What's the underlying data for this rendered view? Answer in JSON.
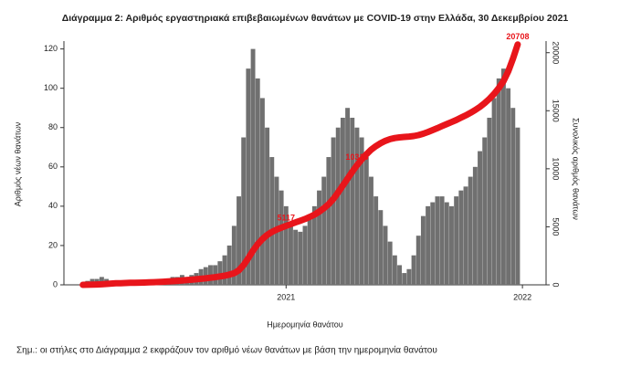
{
  "chart_data": {
    "type": "bar-line",
    "title": "Διάγραμμα 2: Αριθμός εργαστηριακά επιβεβαιωμένων θανάτων με COVID-19 στην Ελλάδα, 30 Δεκεμβρίου 2021",
    "x_label": "Ημερομηνία θανάτου",
    "y_label": "Αριθμός νέων θανάτων",
    "y2_label": "Συνολικός αριθμός θανάτων",
    "note": "Σημ.: οι στήλες στο Διάγραμμα 2 εκφράζουν τον αριθμό νέων θανάτων με βάση την ημερομηνία θανάτου",
    "xlim": [
      2020.06,
      2022.1
    ],
    "xticks": [
      2021,
      2022
    ],
    "ylim": [
      0,
      124
    ],
    "yticks": [
      0,
      20,
      40,
      60,
      80,
      100,
      120
    ],
    "y2lim": [
      0,
      21000
    ],
    "y2ticks": [
      0,
      5000,
      10000,
      15000,
      20000
    ],
    "x": [
      2020.14,
      2020.16,
      2020.18,
      2020.2,
      2020.22,
      2020.24,
      2020.26,
      2020.28,
      2020.3,
      2020.32,
      2020.34,
      2020.36,
      2020.38,
      2020.4,
      2020.42,
      2020.44,
      2020.46,
      2020.48,
      2020.5,
      2020.52,
      2020.54,
      2020.56,
      2020.58,
      2020.6,
      2020.62,
      2020.64,
      2020.66,
      2020.68,
      2020.7,
      2020.72,
      2020.74,
      2020.76,
      2020.78,
      2020.8,
      2020.82,
      2020.84,
      2020.86,
      2020.88,
      2020.9,
      2020.92,
      2020.94,
      2020.96,
      2020.98,
      2021.0,
      2021.02,
      2021.04,
      2021.06,
      2021.08,
      2021.1,
      2021.12,
      2021.14,
      2021.16,
      2021.18,
      2021.2,
      2021.22,
      2021.24,
      2021.26,
      2021.28,
      2021.3,
      2021.32,
      2021.34,
      2021.36,
      2021.38,
      2021.4,
      2021.42,
      2021.44,
      2021.46,
      2021.48,
      2021.5,
      2021.52,
      2021.54,
      2021.56,
      2021.58,
      2021.6,
      2021.62,
      2021.64,
      2021.66,
      2021.68,
      2021.7,
      2021.72,
      2021.74,
      2021.76,
      2021.78,
      2021.8,
      2021.82,
      2021.84,
      2021.86,
      2021.88,
      2021.9,
      2021.92,
      2021.94,
      2021.96,
      2021.98
    ],
    "series": [
      {
        "name": "Νέοι θάνατοι",
        "color": "#707070",
        "axis": "y",
        "values": [
          1,
          2,
          3,
          3,
          4,
          3,
          2,
          2,
          1,
          1,
          1,
          1,
          1,
          1,
          2,
          2,
          2,
          3,
          3,
          4,
          4,
          5,
          4,
          5,
          6,
          8,
          9,
          10,
          10,
          12,
          15,
          20,
          30,
          45,
          75,
          110,
          120,
          105,
          95,
          80,
          65,
          55,
          48,
          40,
          32,
          28,
          27,
          30,
          35,
          40,
          48,
          55,
          65,
          75,
          80,
          85,
          90,
          85,
          80,
          75,
          65,
          55,
          45,
          38,
          30,
          22,
          15,
          10,
          6,
          8,
          15,
          25,
          35,
          40,
          42,
          45,
          45,
          42,
          40,
          45,
          48,
          50,
          55,
          60,
          68,
          75,
          85,
          95,
          105,
          110,
          100,
          90,
          80
        ]
      },
      {
        "name": "Συνολικοί θάνατοι",
        "color": "#e8151b",
        "axis": "y2",
        "values": [
          0,
          5,
          15,
          30,
          50,
          80,
          110,
          130,
          145,
          160,
          170,
          180,
          190,
          200,
          215,
          230,
          245,
          265,
          290,
          315,
          345,
          380,
          410,
          440,
          480,
          520,
          560,
          610,
          660,
          720,
          790,
          880,
          1000,
          1250,
          1700,
          2300,
          2950,
          3500,
          3950,
          4300,
          4560,
          4760,
          4920,
          5080,
          5230,
          5380,
          5520,
          5670,
          5850,
          6050,
          6300,
          6600,
          6950,
          7400,
          7950,
          8550,
          9150,
          9750,
          10300,
          10800,
          11250,
          11650,
          11950,
          12200,
          12400,
          12550,
          12650,
          12700,
          12740,
          12770,
          12820,
          12900,
          13020,
          13170,
          13330,
          13500,
          13680,
          13850,
          14020,
          14200,
          14400,
          14600,
          14820,
          15060,
          15330,
          15650,
          16020,
          16450,
          16950,
          17550,
          18400,
          19500,
          20708
        ]
      }
    ],
    "annotations": [
      {
        "text": "5117",
        "x": 2021.0,
        "y": 5117
      },
      {
        "text": "10316",
        "x": 2021.3,
        "y": 10316
      },
      {
        "text": "20708",
        "x": 2021.98,
        "y": 20708
      }
    ]
  }
}
